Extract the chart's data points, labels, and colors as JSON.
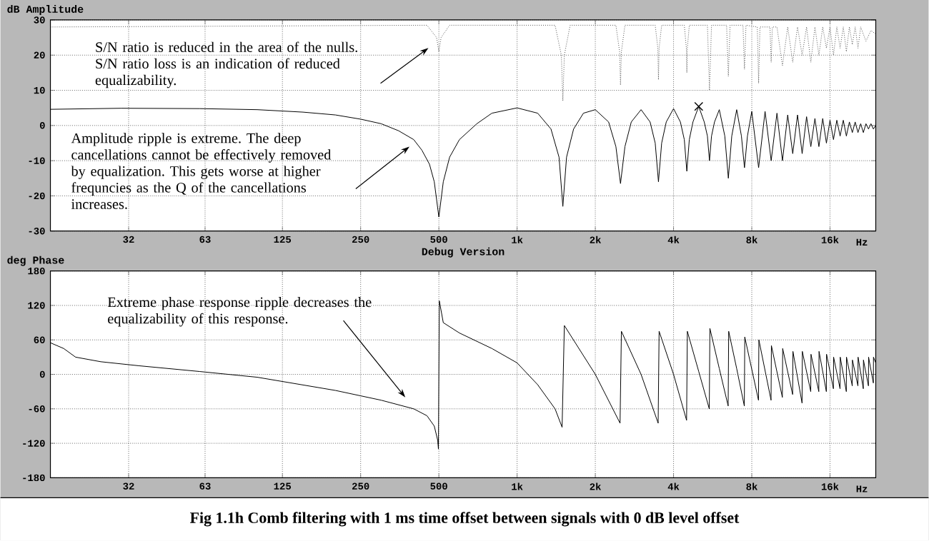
{
  "chart_data": [
    {
      "type": "line",
      "ylabel": "dB Amplitude",
      "xlabel": "Hz",
      "log": "x",
      "grid": true,
      "xlim": [
        16,
        24000
      ],
      "xticks": [
        32,
        63,
        125,
        250,
        500,
        {
          "value": 1000,
          "label": "1k"
        },
        {
          "value": 2000,
          "label": "2k"
        },
        {
          "value": 4000,
          "label": "4k"
        },
        {
          "value": 8000,
          "label": "8k"
        },
        {
          "value": 16000,
          "label": "16k"
        }
      ],
      "ylim": [
        -30,
        30
      ],
      "yticks": [
        -30,
        -20,
        -10,
        0,
        10,
        20,
        30
      ],
      "series": [
        {
          "color": "#000000",
          "x": [
            16,
            30,
            60,
            100,
            150,
            200,
            250,
            300,
            350,
            400,
            430,
            460,
            480,
            500,
            520,
            550,
            600,
            700,
            800,
            1000,
            1200,
            1350,
            1450,
            1500,
            1550,
            1650,
            1800,
            2000,
            2250,
            2400,
            2500,
            2600,
            2750,
            3000,
            3250,
            3400,
            3500,
            3600,
            3750,
            4000,
            4250,
            4400,
            4500,
            4600,
            4750,
            5000,
            5250,
            5400,
            5500,
            5600,
            5750,
            6000,
            6300,
            6500,
            6700,
            7000,
            7300,
            7500,
            7700,
            8000,
            8500,
            9000,
            9500,
            10000,
            10500,
            11000,
            11500,
            12000,
            12500,
            13000,
            13500,
            14000,
            14500,
            15000,
            15500,
            16000,
            16500,
            17000,
            17500,
            18000,
            18500,
            19000,
            19500,
            20000,
            20500,
            21000,
            21500,
            22000,
            22500,
            23000,
            23500,
            24000
          ],
          "values": [
            4.6,
            4.9,
            4.8,
            4.5,
            3.8,
            3,
            1.8,
            0.5,
            -1.5,
            -4,
            -7,
            -11,
            -16,
            -26,
            -16,
            -9,
            -4,
            0.5,
            3.5,
            5,
            3.5,
            -1,
            -9,
            -23,
            -9,
            -1,
            3.5,
            4.5,
            1,
            -6,
            -16.5,
            -6,
            1,
            4.5,
            1,
            -5,
            -16,
            -5,
            1,
            4.8,
            1,
            -4,
            -13,
            -4,
            1,
            5.4,
            1,
            -3,
            -10,
            -3,
            1,
            4.5,
            -3,
            -15,
            -3,
            4.5,
            -3,
            -12,
            -3,
            4,
            -12,
            4,
            -10,
            3.5,
            -10,
            3,
            -8,
            3,
            -8,
            2.5,
            -6,
            2,
            -6,
            2,
            -5,
            1.5,
            -4,
            1.5,
            -3,
            1.5,
            -3,
            1,
            -2,
            1,
            -2,
            0.5,
            -2,
            0.5,
            -1,
            0.5,
            -1,
            0
          ]
        },
        {
          "color": "#505050",
          "line_style": "dotted",
          "x": [
            16,
            450,
            490,
            500,
            510,
            550,
            1400,
            1480,
            1500,
            1520,
            1600,
            2400,
            2480,
            2500,
            2520,
            2600,
            3400,
            3480,
            3500,
            3520,
            3600,
            4400,
            4480,
            4500,
            4520,
            4600,
            5400,
            5500,
            5600,
            6400,
            6500,
            6600,
            7400,
            7500,
            7600,
            8400,
            8500,
            8600,
            9400,
            9500,
            9600,
            10000,
            10500,
            11000,
            11500,
            12000,
            12500,
            13000,
            13500,
            14000,
            14500,
            15000,
            15500,
            16000,
            16500,
            17000,
            17500,
            18000,
            18500,
            19000,
            19500,
            20000,
            20500,
            21000,
            22000,
            23000,
            24000
          ],
          "values": [
            28,
            28.5,
            25,
            21,
            25,
            28.5,
            28.5,
            20,
            7,
            20,
            28.5,
            28.5,
            21,
            11.5,
            21,
            28.5,
            28.5,
            22,
            13,
            22,
            28.5,
            28.5,
            22,
            15,
            22,
            28.5,
            28.5,
            10,
            28.5,
            28.5,
            14,
            28.5,
            28.5,
            16,
            28.5,
            28,
            12,
            28,
            28,
            18,
            28,
            28,
            17,
            28,
            18,
            28,
            20,
            28,
            18,
            28,
            20,
            28,
            22,
            28,
            20,
            28,
            22,
            28,
            21,
            28,
            23,
            28,
            22,
            28,
            24,
            27,
            26
          ]
        },
        {
          "type": "scatter",
          "marker": "cross",
          "color": "#000000",
          "x": [
            5000
          ],
          "values": [
            5.4
          ]
        }
      ],
      "annotations": [
        "S/N ratio is reduced in the area of the nulls. S/N ratio loss is an indication of reduced equalizability.",
        "Amplitude ripple is extreme. The deep cancellations cannot be effectively removed by equalization. This gets worse at higher frequncies as the Q of the cancellations increases."
      ]
    },
    {
      "type": "line",
      "ylabel": "deg Phase",
      "subtitle": "Debug Version",
      "xlabel": "Hz",
      "log": "x",
      "grid": true,
      "xlim": [
        16,
        24000
      ],
      "xticks": [
        32,
        63,
        125,
        250,
        500,
        {
          "value": 1000,
          "label": "1k"
        },
        {
          "value": 2000,
          "label": "2k"
        },
        {
          "value": 4000,
          "label": "4k"
        },
        {
          "value": 8000,
          "label": "8k"
        },
        {
          "value": 16000,
          "label": "16k"
        }
      ],
      "ylim": [
        -180,
        180
      ],
      "yticks": [
        -180,
        -120,
        -60,
        0,
        60,
        120,
        180
      ],
      "series": [
        {
          "color": "#000000",
          "x": [
            16,
            18,
            20,
            25,
            35,
            60,
            100,
            200,
            300,
            400,
            450,
            480,
            495,
            498,
            502,
            520,
            600,
            800,
            1000,
            1200,
            1400,
            1490,
            1520,
            2000,
            2490,
            2520,
            3000,
            3490,
            3520,
            4000,
            4490,
            4520,
            5000,
            5490,
            5520,
            6000,
            6490,
            6520,
            7000,
            7490,
            7520,
            8490,
            8520,
            9490,
            9520,
            10490,
            10520,
            11490,
            11520,
            12490,
            12520,
            13490,
            13520,
            14490,
            14520,
            15490,
            15520,
            16490,
            16520,
            17490,
            17520,
            18490,
            18520,
            19490,
            19520,
            20490,
            20520,
            21490,
            21520,
            22490,
            22520,
            23490,
            23520,
            24000
          ],
          "values": [
            55,
            45,
            30,
            22,
            15,
            5,
            -5,
            -28,
            -45,
            -60,
            -72,
            -90,
            -115,
            -130,
            128,
            90,
            72,
            45,
            20,
            -18,
            -60,
            -92,
            85,
            0,
            -85,
            75,
            0,
            -85,
            75,
            0,
            -80,
            75,
            5,
            -60,
            80,
            10,
            -55,
            75,
            10,
            -55,
            65,
            -45,
            60,
            -45,
            50,
            -40,
            45,
            -35,
            40,
            -50,
            40,
            -30,
            35,
            -30,
            40,
            -30,
            35,
            -25,
            30,
            -25,
            30,
            -30,
            30,
            -20,
            25,
            -20,
            30,
            -25,
            25,
            -20,
            30,
            -15,
            30,
            20
          ]
        }
      ],
      "annotations": [
        "Extreme phase response ripple decreases the equalizability of this response.",
        "Fig 1.1h Comb filtering with 1 ms time offset between signals with 0 dB level offset"
      ]
    }
  ]
}
